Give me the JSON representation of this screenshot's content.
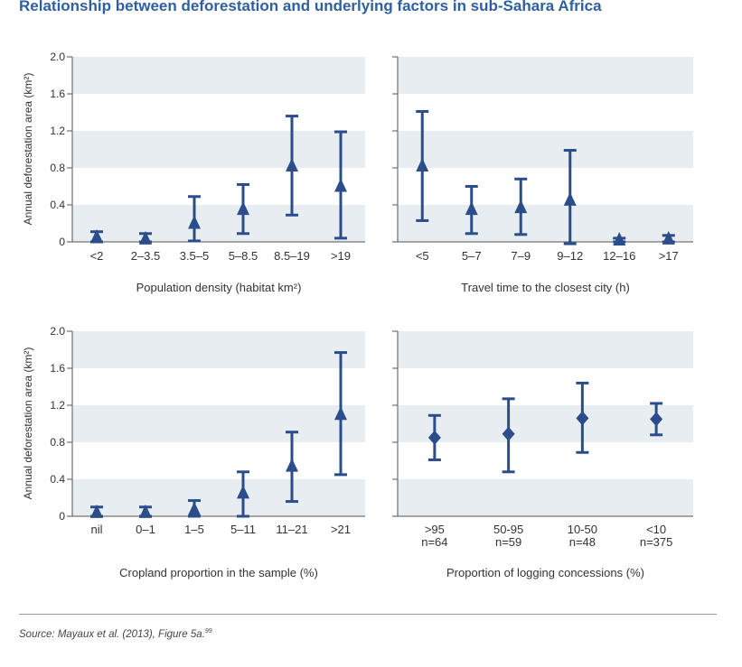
{
  "title": "Relationship between deforestation and underlying factors in sub-Sahara Africa",
  "source": {
    "text": "Source: Mayaux et al. (2013), Figure 5a.",
    "note": "99"
  },
  "colors": {
    "series": "#2b4d8c",
    "band": "#e8edf1",
    "axis": "#555555",
    "title": "#2e5fa3"
  },
  "chart_data": [
    {
      "type": "scatter",
      "marker": "triangle",
      "xlabel": "Population density (habitat km²)",
      "ylabel": "Annual deforestation area (km²)",
      "ylim": [
        0,
        2.0
      ],
      "yticks": [
        "0",
        "0.4",
        "0.8",
        "1.2",
        "1.6",
        "2.0"
      ],
      "grid": "alternating horizontal bands",
      "categories": [
        [
          "<2"
        ],
        [
          "2–3.5"
        ],
        [
          "3.5–5"
        ],
        [
          "5–8.5"
        ],
        [
          "8.5–19"
        ],
        [
          ">19"
        ]
      ],
      "values": [
        0.05,
        0.03,
        0.2,
        0.35,
        0.82,
        0.6
      ],
      "lower": [
        0.0,
        0.0,
        0.01,
        0.09,
        0.29,
        0.04
      ],
      "upper": [
        0.11,
        0.09,
        0.49,
        0.62,
        1.36,
        1.19
      ]
    },
    {
      "type": "scatter",
      "marker": "triangle",
      "xlabel": "Travel time to the closest city (h)",
      "ylabel": "",
      "ylim": [
        0,
        2.0
      ],
      "yticks": [],
      "grid": "alternating horizontal bands",
      "categories": [
        [
          "<5"
        ],
        [
          "5–7"
        ],
        [
          "7–9"
        ],
        [
          "9–12"
        ],
        [
          "12–16"
        ],
        [
          ">17"
        ]
      ],
      "values": [
        0.82,
        0.35,
        0.37,
        0.45,
        0.02,
        0.03
      ],
      "lower": [
        0.23,
        0.09,
        0.08,
        -0.02,
        0.0,
        0.0
      ],
      "upper": [
        1.41,
        0.6,
        0.68,
        0.99,
        0.04,
        0.07
      ]
    },
    {
      "type": "scatter",
      "marker": "triangle",
      "xlabel": "Cropland proportion in the sample (%)",
      "ylabel": "Annual deforestation area (km²)",
      "ylim": [
        0,
        2.0
      ],
      "yticks": [
        "0",
        "0.4",
        "0.8",
        "1.2",
        "1.6",
        "2.0"
      ],
      "grid": "alternating horizontal bands",
      "categories": [
        [
          "nil"
        ],
        [
          "0–1"
        ],
        [
          "1–5"
        ],
        [
          "5–11"
        ],
        [
          "11–21"
        ],
        [
          ">21"
        ]
      ],
      "values": [
        0.04,
        0.04,
        0.07,
        0.25,
        0.54,
        1.1
      ],
      "lower": [
        0.0,
        0.0,
        0.0,
        0.0,
        0.16,
        0.45
      ],
      "upper": [
        0.1,
        0.1,
        0.17,
        0.48,
        0.91,
        1.77
      ]
    },
    {
      "type": "scatter",
      "marker": "diamond",
      "xlabel": "Proportion of logging concessions (%)",
      "ylabel": "",
      "ylim": [
        0,
        2.0
      ],
      "yticks": [],
      "grid": "alternating horizontal bands",
      "categories": [
        [
          ">95",
          "n=64"
        ],
        [
          "50-95",
          "n=59"
        ],
        [
          "10-50",
          "n=48"
        ],
        [
          "<10",
          "n=375"
        ]
      ],
      "values": [
        0.85,
        0.89,
        1.06,
        1.05
      ],
      "lower": [
        0.61,
        0.48,
        0.69,
        0.88
      ],
      "upper": [
        1.09,
        1.27,
        1.44,
        1.22
      ]
    }
  ]
}
